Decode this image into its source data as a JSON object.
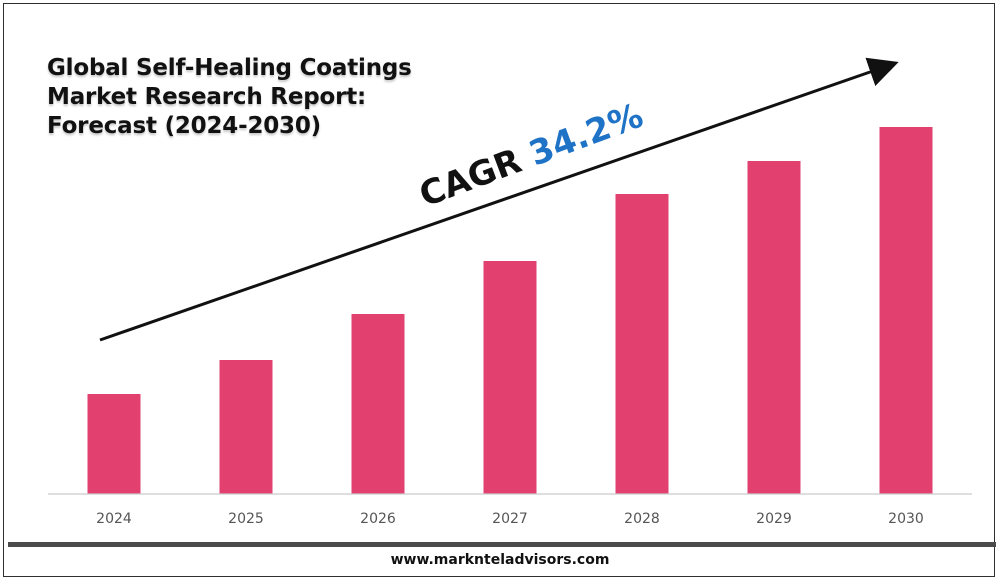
{
  "title": {
    "line1": "Global Self-Healing Coatings",
    "line2": "Market Research Report:",
    "line3": "Forecast (2024-2030)"
  },
  "cagr": {
    "label": "CAGR",
    "value": "34.2%",
    "label_color": "#111111",
    "value_color": "#1f73c6"
  },
  "footer": {
    "url": "www.marknteladvisors.com"
  },
  "colors": {
    "bar": "#e2406e",
    "axis": "#c9c9c9",
    "tick_text": "#555555",
    "arrow": "#111111"
  },
  "chart_data": {
    "type": "bar",
    "categories": [
      "2024",
      "2025",
      "2026",
      "2027",
      "2028",
      "2029",
      "2030"
    ],
    "values": [
      1.0,
      1.34,
      1.8,
      2.33,
      3.0,
      3.33,
      3.67
    ],
    "ylim": [
      0,
      4
    ],
    "title": "Global Self-Healing Coatings Market Research Report: Forecast (2024-2030)",
    "xlabel": "",
    "ylabel": "",
    "grid": false,
    "legend": "none",
    "annotation": "CAGR 34.2%"
  }
}
